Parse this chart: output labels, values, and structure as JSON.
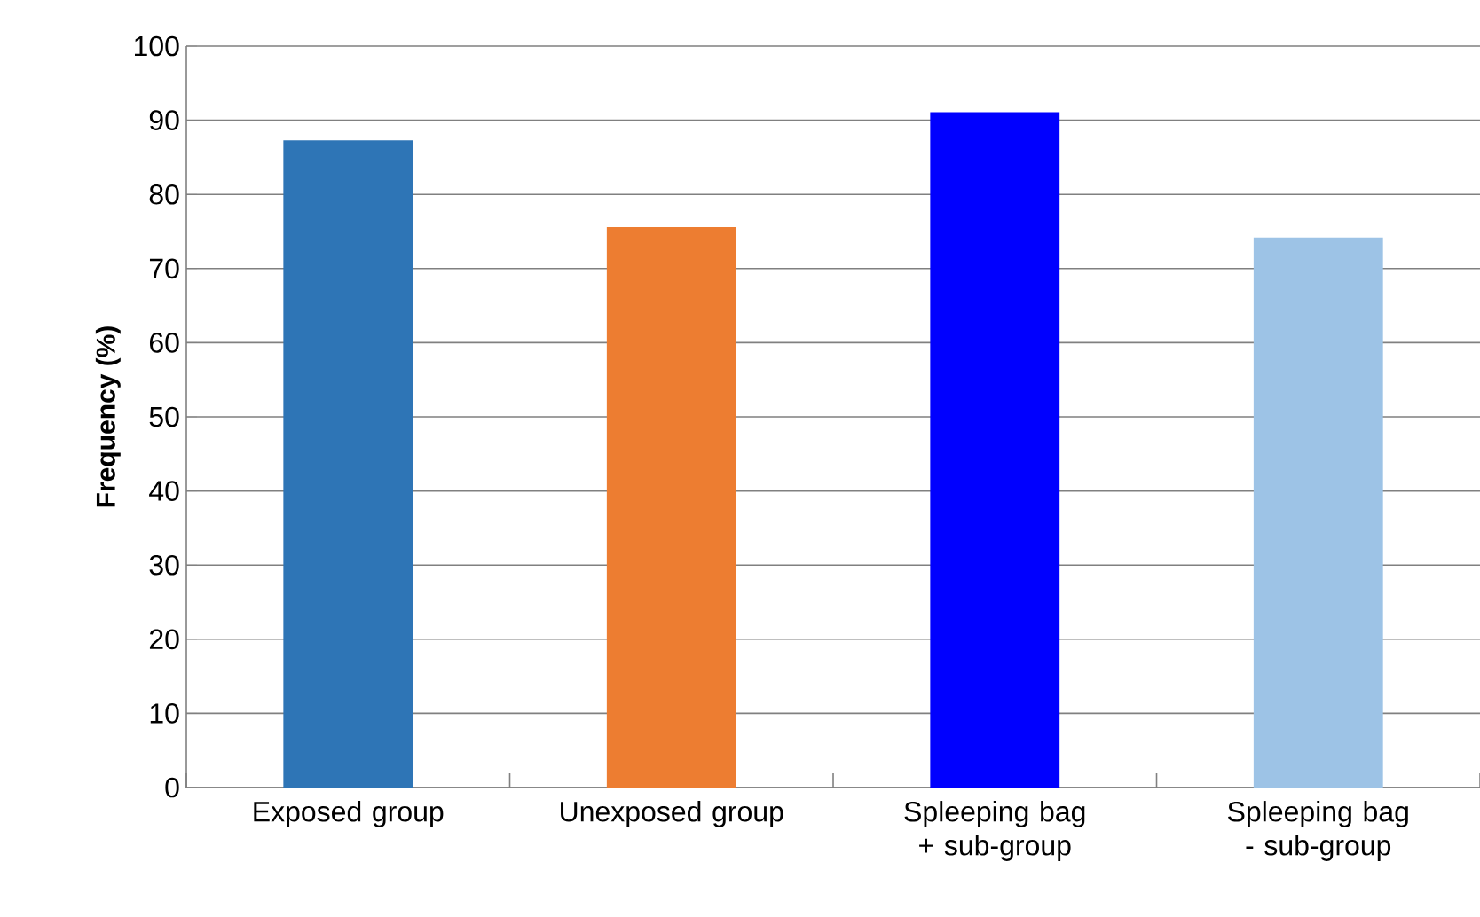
{
  "chart_data": {
    "type": "bar",
    "ylabel": "Frequency (%)",
    "categories": [
      "Exposed group",
      "Unexposed group",
      "Spleeping bag + sub-group",
      "Spleeping bag - sub-group"
    ],
    "values": [
      87.3,
      75.6,
      91.1,
      74.2
    ],
    "colors": [
      "#2e75b6",
      "#ed7d31",
      "#0000ff",
      "#9dc3e6"
    ],
    "ylim": [
      0,
      100
    ],
    "yticks": [
      0,
      10,
      20,
      30,
      40,
      50,
      60,
      70,
      80,
      90,
      100
    ],
    "grid": "y"
  }
}
